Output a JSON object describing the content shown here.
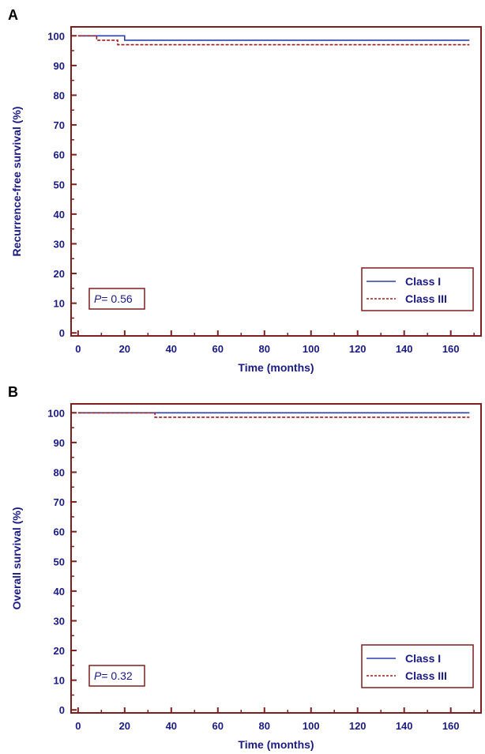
{
  "colors": {
    "frame": "#7b1f1f",
    "text": "#1a1a80",
    "class_i": "#2b3fae",
    "class_iii": "#9b1b1b"
  },
  "chart_data": [
    {
      "panel": "A",
      "type": "line",
      "xlabel": "Time (months)",
      "ylabel": "Recurrence-free survival (%)",
      "xlim": [
        -3,
        173
      ],
      "ylim": [
        -1,
        103
      ],
      "xticks": [
        0,
        20,
        40,
        60,
        80,
        100,
        120,
        140,
        160
      ],
      "yticks": [
        0,
        10,
        20,
        30,
        40,
        50,
        60,
        70,
        80,
        90,
        100
      ],
      "grid": false,
      "legend_position": "bottom-right",
      "annotation": {
        "p_label": "P",
        "p_value": "= 0.56",
        "position": "bottom-left"
      },
      "series": [
        {
          "name": "Class I",
          "style": "solid",
          "color": "#2b3fae",
          "x": [
            0,
            20,
            20,
            168
          ],
          "y": [
            100,
            100,
            98.5,
            98.5
          ]
        },
        {
          "name": "Class III",
          "style": "dashed",
          "color": "#9b1b1b",
          "x": [
            0,
            8,
            8,
            17,
            17,
            168
          ],
          "y": [
            100,
            100,
            98.5,
            98.5,
            97,
            97
          ]
        }
      ]
    },
    {
      "panel": "B",
      "type": "line",
      "xlabel": "Time (months)",
      "ylabel": "Overall survival (%)",
      "xlim": [
        -3,
        173
      ],
      "ylim": [
        -1,
        103
      ],
      "xticks": [
        0,
        20,
        40,
        60,
        80,
        100,
        120,
        140,
        160
      ],
      "yticks": [
        0,
        10,
        20,
        30,
        40,
        50,
        60,
        70,
        80,
        90,
        100
      ],
      "grid": false,
      "legend_position": "bottom-right",
      "annotation": {
        "p_label": "P",
        "p_value": "= 0.32",
        "position": "bottom-left"
      },
      "series": [
        {
          "name": "Class I",
          "style": "solid",
          "color": "#2b3fae",
          "x": [
            0,
            168
          ],
          "y": [
            100,
            100
          ]
        },
        {
          "name": "Class III",
          "style": "dashed",
          "color": "#9b1b1b",
          "x": [
            0,
            33,
            33,
            168
          ],
          "y": [
            100,
            100,
            98.5,
            98.5
          ]
        }
      ]
    }
  ]
}
